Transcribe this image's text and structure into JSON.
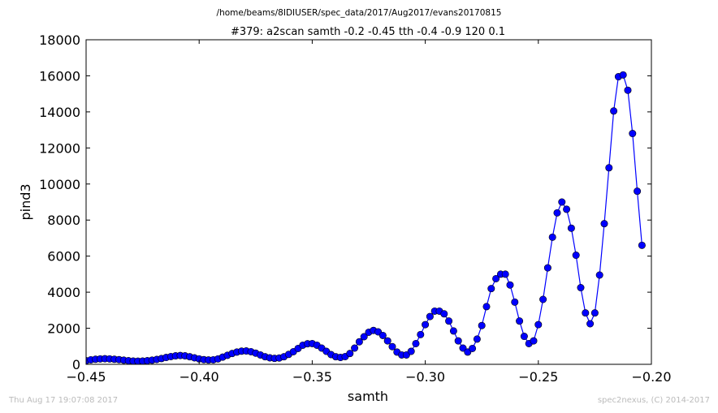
{
  "footer": {
    "timestamp": "Thu Aug 17 19:07:08 2017",
    "credit": "spec2nexus, (C) 2014-2017"
  },
  "chart_data": {
    "type": "line",
    "suptitle": "/home/beams/8IDIUSER/spec_data/2017/Aug2017/evans20170815",
    "title": "#379: a2scan  samth -0.2 -0.45  tth -0.4 -0.9  120 0.1",
    "xlabel": "samth",
    "ylabel": "pind3",
    "xlim": [
      -0.45,
      -0.2
    ],
    "ylim": [
      0,
      18000
    ],
    "xticks": [
      -0.45,
      -0.4,
      -0.35,
      -0.3,
      -0.25,
      -0.2
    ],
    "xtick_labels": [
      "−0.45",
      "−0.40",
      "−0.35",
      "−0.30",
      "−0.25",
      "−0.20"
    ],
    "yticks": [
      0,
      2000,
      4000,
      6000,
      8000,
      10000,
      12000,
      14000,
      16000,
      18000
    ],
    "ytick_labels": [
      "0",
      "2000",
      "4000",
      "6000",
      "8000",
      "10000",
      "12000",
      "14000",
      "16000",
      "18000"
    ],
    "series_color": "#0000ff",
    "marker": "circle",
    "grid": false,
    "series": [
      {
        "x_start": -0.45,
        "x_step": 0.0020833,
        "values": [
          200,
          250,
          280,
          300,
          310,
          300,
          280,
          260,
          230,
          200,
          180,
          175,
          180,
          200,
          230,
          270,
          320,
          380,
          430,
          470,
          490,
          470,
          420,
          360,
          300,
          260,
          240,
          250,
          300,
          400,
          500,
          600,
          680,
          730,
          740,
          700,
          620,
          520,
          420,
          360,
          330,
          350,
          420,
          550,
          700,
          880,
          1060,
          1140,
          1150,
          1060,
          900,
          720,
          540,
          420,
          380,
          430,
          600,
          900,
          1250,
          1530,
          1780,
          1880,
          1800,
          1600,
          1300,
          980,
          680,
          520,
          520,
          720,
          1150,
          1650,
          2200,
          2650,
          2950,
          2950,
          2800,
          2400,
          1850,
          1300,
          900,
          680,
          880,
          1400,
          2150,
          3200,
          4200,
          4750,
          5000,
          5000,
          4400,
          3450,
          2400,
          1550,
          1150,
          1300,
          2200,
          3600,
          5350,
          7050,
          8400,
          9000,
          8600,
          7550,
          6050,
          4250,
          2850,
          2250,
          2850,
          4950,
          7800,
          10900,
          14050,
          15950,
          16050,
          15200,
          12800,
          9600,
          6600
        ]
      }
    ]
  }
}
